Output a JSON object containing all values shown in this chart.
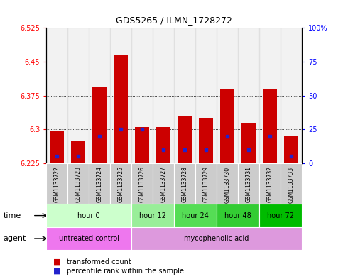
{
  "title": "GDS5265 / ILMN_1728272",
  "samples": [
    "GSM1133722",
    "GSM1133723",
    "GSM1133724",
    "GSM1133725",
    "GSM1133726",
    "GSM1133727",
    "GSM1133728",
    "GSM1133729",
    "GSM1133730",
    "GSM1133731",
    "GSM1133732",
    "GSM1133733"
  ],
  "transformed_count": [
    6.295,
    6.275,
    6.395,
    6.465,
    6.305,
    6.305,
    6.33,
    6.325,
    6.39,
    6.315,
    6.39,
    6.285
  ],
  "baseline": 6.225,
  "percentile_rank": [
    5,
    5,
    20,
    25,
    25,
    10,
    10,
    10,
    20,
    10,
    20,
    5
  ],
  "ylim_left": [
    6.225,
    6.525
  ],
  "ylim_right": [
    0,
    100
  ],
  "yticks_left": [
    6.225,
    6.3,
    6.375,
    6.45,
    6.525
  ],
  "yticks_right": [
    0,
    25,
    50,
    75,
    100
  ],
  "ytick_labels_right": [
    "0",
    "25",
    "50",
    "75",
    "100%"
  ],
  "bar_color": "#cc0000",
  "percentile_color": "#2222cc",
  "background_plot": "#ffffff",
  "time_groups": [
    {
      "label": "hour 0",
      "start": 0,
      "end": 4,
      "color": "#ccffcc"
    },
    {
      "label": "hour 12",
      "start": 4,
      "end": 6,
      "color": "#99ee99"
    },
    {
      "label": "hour 24",
      "start": 6,
      "end": 8,
      "color": "#55dd55"
    },
    {
      "label": "hour 48",
      "start": 8,
      "end": 10,
      "color": "#33cc33"
    },
    {
      "label": "hour 72",
      "start": 10,
      "end": 12,
      "color": "#00bb00"
    }
  ],
  "agent_groups": [
    {
      "label": "untreated control",
      "start": 0,
      "end": 4,
      "color": "#ee77ee"
    },
    {
      "label": "mycophenolic acid",
      "start": 4,
      "end": 12,
      "color": "#dd99dd"
    }
  ],
  "sample_bg_color": "#cccccc",
  "legend_red": "transformed count",
  "legend_blue": "percentile rank within the sample"
}
